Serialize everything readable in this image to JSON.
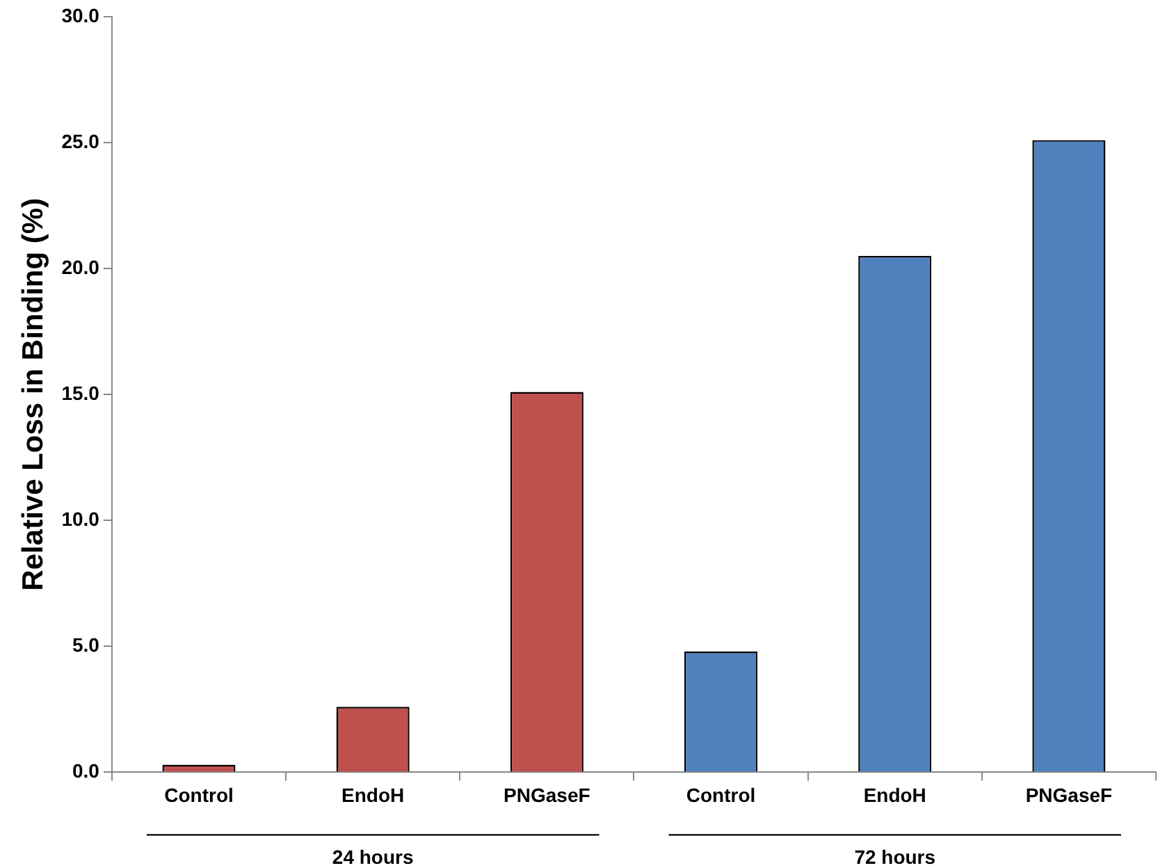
{
  "chart_data": {
    "type": "bar",
    "ylabel": "Relative Loss in Binding (%)",
    "categories": [
      "Control",
      "EndoH",
      "PNGaseF",
      "Control",
      "EndoH",
      "PNGaseF"
    ],
    "values": [
      0.3,
      2.6,
      15.1,
      4.8,
      20.5,
      25.1
    ],
    "colors": [
      "#c0504d",
      "#c0504d",
      "#c0504d",
      "#4f81bd",
      "#4f81bd",
      "#4f81bd"
    ],
    "ylim": [
      0,
      30
    ],
    "yticks": [
      {
        "value": 0,
        "label": "0.0"
      },
      {
        "value": 5,
        "label": "5.0"
      },
      {
        "value": 10,
        "label": "10.0"
      },
      {
        "value": 15,
        "label": "15.0"
      },
      {
        "value": 20,
        "label": "20.0"
      },
      {
        "value": 25,
        "label": "25.0"
      },
      {
        "value": 30,
        "label": "30.0"
      }
    ],
    "annotations": [
      "24 hours",
      "72 hours"
    ],
    "grid": false,
    "legend": false
  }
}
